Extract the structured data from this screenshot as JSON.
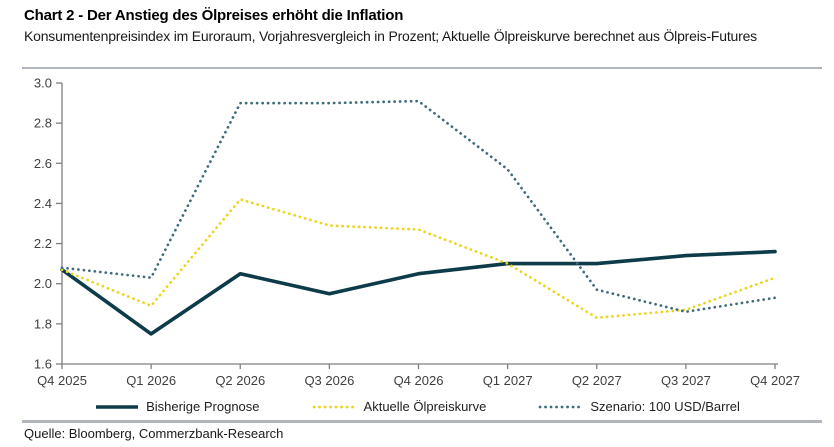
{
  "header": {
    "title": "Chart 2 - Der Anstieg des Ölpreises erhöht die Inflation",
    "subtitle": "Konsumentenpreisindex im Euroraum, Vorjahresvergleich in Prozent; Aktuelle Ölpreiskurve berechnet aus Ölpreis-Futures"
  },
  "footer": {
    "source": "Quelle: Bloomberg, Commerzbank-Research"
  },
  "colors": {
    "accent_navy": "#0e3b49",
    "accent_yellow": "#eed316",
    "accent_steel_blue": "#3e6b7e",
    "axis": "#7f7f7f",
    "tick_label": "#3f3f3f",
    "divider": "#b0b6bc"
  },
  "chart_data": {
    "type": "line",
    "title": "Chart 2 - Der Anstieg des Ölpreises erhöht die Inflation",
    "subtitle": "Konsumentenpreisindex im Euroraum, Vorjahresvergleich in Prozent; Aktuelle Ölpreiskurve berechnet aus Ölpreis-Futures",
    "xlabel": "",
    "ylabel": "",
    "categories": [
      "Q4 2025",
      "Q1 2026",
      "Q2 2026",
      "Q3 2026",
      "Q4 2026",
      "Q1 2027",
      "Q2 2027",
      "Q3 2027",
      "Q4 2027"
    ],
    "series": [
      {
        "name": "Bisherige Prognose",
        "style": "solid",
        "color": "#0e3b49",
        "values": [
          2.07,
          1.75,
          2.05,
          1.95,
          2.05,
          2.1,
          2.1,
          2.14,
          2.16
        ]
      },
      {
        "name": "Aktuelle Ölpreiskurve",
        "style": "dotted",
        "color": "#eed316",
        "values": [
          2.07,
          1.89,
          2.42,
          2.29,
          2.27,
          2.1,
          1.83,
          1.87,
          2.03
        ]
      },
      {
        "name": "Szenario: 100 USD/Barrel",
        "style": "dotted",
        "color": "#3e6b7e",
        "values": [
          2.08,
          2.03,
          2.9,
          2.9,
          2.91,
          2.57,
          1.97,
          1.86,
          1.93
        ]
      }
    ],
    "ylim": [
      1.6,
      3.0
    ],
    "yticks": [
      "1.6",
      "1.8",
      "2.0",
      "2.2",
      "2.4",
      "2.6",
      "2.8",
      "3.0"
    ],
    "grid": false,
    "legend_position": "bottom"
  }
}
